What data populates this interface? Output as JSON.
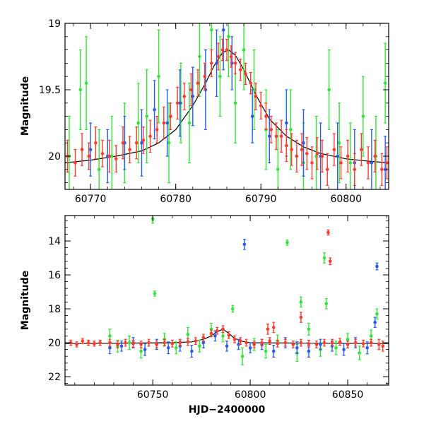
{
  "chart_data": [
    {
      "type": "scatter",
      "title": "",
      "xlabel": "",
      "ylabel": "Magnitude",
      "xlim": [
        60767,
        60805
      ],
      "ylim": [
        20.25,
        19.0
      ],
      "y_inverted": true,
      "xticks": [
        60770,
        60780,
        60790,
        60800
      ],
      "yticks": [
        19,
        19.5,
        20
      ],
      "ytick_labels": [
        "19",
        "19.5",
        "20"
      ],
      "grid": false,
      "legend": "none",
      "series": [
        {
          "color": "#ff3b2e",
          "marker": "circle with error bars",
          "x": [
            60767.3,
            60768.2,
            60769.0,
            60769.8,
            60770.6,
            60771.4,
            60772.2,
            60773.0,
            60773.8,
            60774.6,
            60775.4,
            60776.2,
            60777.0,
            60777.8,
            60778.6,
            60779.4,
            60780.2,
            60781.0,
            60781.8,
            60782.6,
            60783.4,
            60784.2,
            60785.0,
            60785.5,
            60786.0,
            60786.5,
            60787.0,
            60787.6,
            60788.2,
            60788.8,
            60789.4,
            60790.0,
            60790.6,
            60791.2,
            60791.8,
            60792.4,
            60793.0,
            60793.6,
            60794.2,
            60794.8,
            60795.4,
            60796.0,
            60796.6,
            60797.2,
            60797.8,
            60798.6,
            60799.4,
            60800.2,
            60801.0,
            60801.8,
            60802.6,
            60803.4,
            60804.2,
            60804.8
          ],
          "y": [
            20.0,
            20.05,
            19.95,
            20.0,
            19.9,
            19.98,
            20.0,
            20.02,
            19.9,
            19.95,
            19.9,
            19.88,
            19.85,
            19.8,
            19.75,
            19.7,
            19.6,
            19.55,
            19.5,
            19.45,
            19.4,
            19.3,
            19.25,
            19.2,
            19.2,
            19.25,
            19.3,
            19.35,
            19.38,
            19.45,
            19.55,
            19.62,
            19.7,
            19.8,
            19.85,
            19.85,
            19.92,
            19.95,
            20.0,
            19.95,
            19.98,
            20.05,
            19.98,
            20.0,
            20.1,
            19.95,
            20.05,
            20.0,
            20.1,
            19.95,
            20.05,
            20.0,
            20.1,
            20.05
          ],
          "err": [
            0.12,
            0.1,
            0.12,
            0.1,
            0.12,
            0.1,
            0.12,
            0.1,
            0.12,
            0.1,
            0.12,
            0.1,
            0.12,
            0.1,
            0.12,
            0.1,
            0.12,
            0.1,
            0.12,
            0.1,
            0.1,
            0.1,
            0.1,
            0.08,
            0.08,
            0.08,
            0.08,
            0.08,
            0.08,
            0.08,
            0.1,
            0.1,
            0.1,
            0.1,
            0.1,
            0.12,
            0.12,
            0.12,
            0.12,
            0.12,
            0.12,
            0.12,
            0.12,
            0.12,
            0.12,
            0.12,
            0.12,
            0.12,
            0.12,
            0.12,
            0.12,
            0.12,
            0.12,
            0.12
          ]
        },
        {
          "color": "#2b5ce8",
          "marker": "circle with error bars",
          "x": [
            60770.0,
            60772.0,
            60774.0,
            60776.0,
            60777.5,
            60779.0,
            60780.5,
            60782.0,
            60783.5,
            60784.8,
            60785.6,
            60786.6,
            60789.0,
            60791.0,
            60793.0,
            60795.0,
            60797.0,
            60799.0,
            60801.0,
            60803.0,
            60804.6
          ],
          "y": [
            19.95,
            20.0,
            19.9,
            19.9,
            19.65,
            19.75,
            19.6,
            19.55,
            19.5,
            19.3,
            19.05,
            19.3,
            19.7,
            19.85,
            19.75,
            19.9,
            20.0,
            20.0,
            20.05,
            20.05,
            20.1
          ],
          "err": [
            0.2,
            0.2,
            0.2,
            0.25,
            0.22,
            0.25,
            0.25,
            0.22,
            0.3,
            0.25,
            0.3,
            0.2,
            0.2,
            0.2,
            0.25,
            0.25,
            0.25,
            0.25,
            0.25,
            0.25,
            0.25
          ]
        },
        {
          "color": "#33e43a",
          "marker": "circle with error bars",
          "x": [
            60767.5,
            60768.8,
            60769.5,
            60771.0,
            60772.5,
            60774.0,
            60775.6,
            60776.6,
            60778.0,
            60779.2,
            60780.6,
            60781.6,
            60782.8,
            60784.2,
            60785.2,
            60786.2,
            60787.0,
            60788.0,
            60789.2,
            60790.6,
            60792.0,
            60793.5,
            60795.0,
            60796.5,
            60798.0,
            60799.2,
            60800.5,
            60802.0,
            60803.5,
            60804.6
          ],
          "y": [
            20.0,
            19.5,
            19.45,
            20.1,
            20.0,
            19.9,
            19.75,
            19.7,
            19.4,
            19.9,
            19.6,
            19.75,
            19.25,
            19.05,
            19.4,
            19.1,
            19.6,
            19.2,
            19.5,
            19.8,
            20.1,
            19.8,
            20.05,
            20.0,
            19.5,
            19.9,
            20.05,
            19.7,
            20.0,
            19.45
          ],
          "err": [
            0.3,
            0.3,
            0.35,
            0.3,
            0.3,
            0.3,
            0.3,
            0.35,
            0.35,
            0.3,
            0.3,
            0.3,
            0.3,
            0.3,
            0.3,
            0.3,
            0.3,
            0.3,
            0.3,
            0.3,
            0.3,
            0.3,
            0.3,
            0.3,
            0.3,
            0.3,
            0.3,
            0.3,
            0.3,
            0.3
          ]
        },
        {
          "color": "#000000",
          "marker": "line",
          "x": [
            60767,
            60770,
            60773,
            60776,
            60778,
            60780,
            60782,
            60783.5,
            60784.5,
            60785.5,
            60786.2,
            60787,
            60788,
            60789.5,
            60791,
            60793,
            60795,
            60797,
            60800,
            60803,
            60805
          ],
          "y": [
            20.05,
            20.03,
            20.0,
            19.96,
            19.9,
            19.8,
            19.62,
            19.45,
            19.32,
            19.22,
            19.2,
            19.24,
            19.35,
            19.55,
            19.72,
            19.85,
            19.93,
            19.98,
            20.02,
            20.04,
            20.05
          ]
        }
      ]
    },
    {
      "type": "scatter",
      "title": "",
      "xlabel": "HJD−2400000",
      "ylabel": "Magnitude",
      "xlim": [
        60705,
        60871
      ],
      "ylim": [
        22.5,
        12.5
      ],
      "y_inverted": true,
      "xticks": [
        60750,
        60800,
        60850
      ],
      "yticks": [
        14,
        16,
        18,
        20,
        22
      ],
      "ytick_labels": [
        "14",
        "16",
        "18",
        "20",
        "22"
      ],
      "grid": false,
      "legend": "none",
      "series": [
        {
          "color": "#ff3b2e",
          "marker": "circle with error bars",
          "x": [
            60708,
            60711,
            60714,
            60717,
            60720,
            60723,
            60728,
            60732,
            60736,
            60740,
            60744,
            60748,
            60752,
            60756,
            60760,
            60764,
            60768,
            60772,
            60776,
            60780,
            60783,
            60786,
            60789,
            60792,
            60795,
            60798,
            60802,
            60806,
            60810,
            60814,
            60818,
            60822,
            60826,
            60830,
            60834,
            60838,
            60842,
            60846,
            60850,
            60854,
            60858,
            60862,
            60866,
            60868,
            60840,
            60841,
            60826,
            60812,
            60809
          ],
          "y": [
            20.0,
            20.1,
            19.9,
            20.0,
            20.05,
            20.0,
            20.0,
            20.1,
            20.0,
            20.05,
            20.1,
            20.0,
            20.1,
            20.0,
            20.05,
            20.0,
            19.95,
            19.9,
            19.7,
            19.45,
            19.3,
            19.2,
            19.55,
            19.8,
            19.9,
            20.0,
            20.1,
            20.0,
            19.9,
            20.05,
            20.0,
            20.1,
            20.0,
            20.05,
            20.1,
            20.0,
            20.0,
            19.95,
            20.1,
            20.0,
            20.05,
            20.0,
            20.1,
            20.2,
            13.5,
            15.2,
            18.5,
            19.1,
            19.2
          ],
          "err": [
            0.15,
            0.15,
            0.15,
            0.15,
            0.15,
            0.15,
            0.2,
            0.2,
            0.2,
            0.2,
            0.2,
            0.2,
            0.2,
            0.2,
            0.2,
            0.2,
            0.2,
            0.2,
            0.2,
            0.2,
            0.2,
            0.2,
            0.2,
            0.2,
            0.2,
            0.2,
            0.2,
            0.2,
            0.2,
            0.2,
            0.2,
            0.2,
            0.2,
            0.2,
            0.2,
            0.2,
            0.2,
            0.2,
            0.2,
            0.2,
            0.2,
            0.2,
            0.3,
            0.3,
            0.15,
            0.2,
            0.3,
            0.3,
            0.3
          ]
        },
        {
          "color": "#2b5ce8",
          "marker": "circle with error bars",
          "x": [
            60728,
            60734,
            60740,
            60746,
            60752,
            60758,
            60764,
            60770,
            60776,
            60782,
            60788,
            60794,
            60797,
            60800,
            60806,
            60812,
            60818,
            60824,
            60830,
            60836,
            60842,
            60848,
            60854,
            60860,
            60864,
            60865
          ],
          "y": [
            20.3,
            20.2,
            20.0,
            20.4,
            20.1,
            20.3,
            20.2,
            20.5,
            20.0,
            19.6,
            20.2,
            20.1,
            14.2,
            20.3,
            20.1,
            20.5,
            20.0,
            20.3,
            20.5,
            20.1,
            20.2,
            20.4,
            20.0,
            20.3,
            18.8,
            15.5
          ],
          "err": [
            0.35,
            0.3,
            0.3,
            0.35,
            0.3,
            0.35,
            0.3,
            0.35,
            0.3,
            0.3,
            0.3,
            0.3,
            0.3,
            0.3,
            0.3,
            0.35,
            0.3,
            0.35,
            0.35,
            0.3,
            0.3,
            0.35,
            0.3,
            0.35,
            0.3,
            0.2
          ]
        },
        {
          "color": "#33e43a",
          "marker": "circle with error bars",
          "x": [
            60728,
            60732,
            60738,
            60744,
            60750,
            60751,
            60756,
            60762,
            60768,
            60774,
            60780,
            60786,
            60791,
            60796,
            60802,
            60808,
            60814,
            60819,
            60824,
            60826,
            60830,
            60836,
            60838,
            60839,
            60844,
            60850,
            60856,
            60862,
            60865
          ],
          "y": [
            19.6,
            20.2,
            20.0,
            20.5,
            12.7,
            17.1,
            19.8,
            20.3,
            19.5,
            20.2,
            19.2,
            19.6,
            18.0,
            20.8,
            20.1,
            20.5,
            19.9,
            14.1,
            20.6,
            17.6,
            19.2,
            20.4,
            15.0,
            17.7,
            20.3,
            19.8,
            20.6,
            19.6,
            18.3
          ],
          "err": [
            0.4,
            0.35,
            0.4,
            0.4,
            0.25,
            0.15,
            0.35,
            0.35,
            0.4,
            0.35,
            0.35,
            0.35,
            0.2,
            0.5,
            0.35,
            0.4,
            0.35,
            0.15,
            0.5,
            0.3,
            0.35,
            0.4,
            0.3,
            0.3,
            0.4,
            0.35,
            0.4,
            0.35,
            0.3
          ]
        },
        {
          "color": "#000000",
          "marker": "line",
          "x": [
            60705,
            60760,
            60770,
            60776,
            60780,
            60783,
            60786,
            60789,
            60792,
            60796,
            60800,
            60871
          ],
          "y": [
            20.05,
            20.0,
            19.95,
            19.8,
            19.6,
            19.35,
            19.2,
            19.45,
            19.75,
            19.92,
            20.0,
            20.05
          ]
        }
      ]
    }
  ]
}
